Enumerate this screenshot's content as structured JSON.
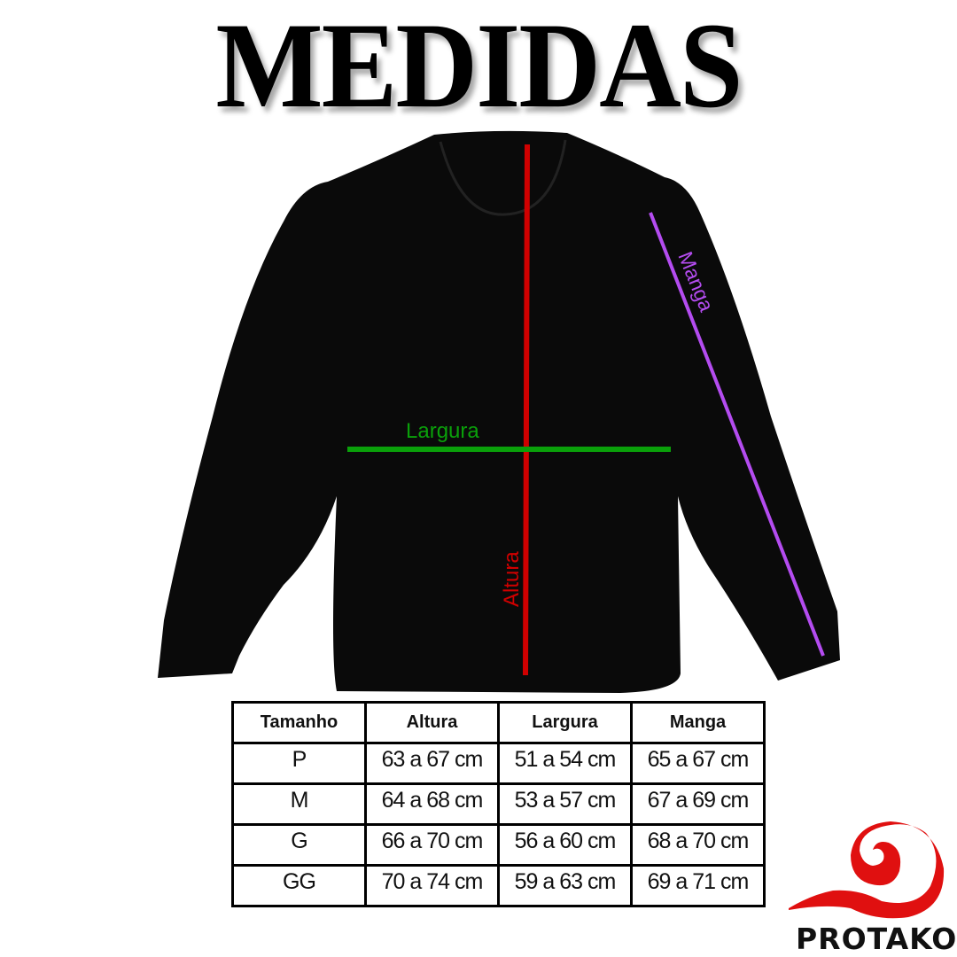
{
  "title": "MEDIDAS",
  "diagram": {
    "labels": {
      "largura": "Largura",
      "altura": "Altura",
      "manga": "Manga"
    },
    "colors": {
      "largura": "#0aa00a",
      "altura": "#d00000",
      "manga": "#b44cf0",
      "garment": "#0a0a0a"
    }
  },
  "table": {
    "headers": [
      "Tamanho",
      "Altura",
      "Largura",
      "Manga"
    ],
    "rows": [
      [
        "P",
        "63 a 67 cm",
        "51 a 54 cm",
        "65 a 67 cm"
      ],
      [
        "M",
        "64 a 68 cm",
        "53 a 57 cm",
        "67 a 69 cm"
      ],
      [
        "G",
        "66 a 70 cm",
        "56 a 60 cm",
        "68 a 70 cm"
      ],
      [
        "GG",
        "70 a 74 cm",
        "59 a 63 cm",
        "69 a 71 cm"
      ]
    ]
  },
  "brand": {
    "name": "PROTAKO",
    "color": "#e01010"
  }
}
